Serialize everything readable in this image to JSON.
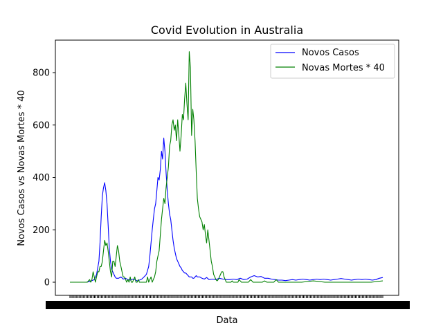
{
  "chart_data": {
    "type": "line",
    "title": "Covid Evolution in Australia",
    "xlabel": "Data",
    "ylabel": "Novos Casos vs Novas Mortes * 40",
    "ylim": [
      -52,
      920
    ],
    "yticks": [
      0,
      200,
      400,
      600,
      800
    ],
    "grid": false,
    "legend_position": "top-right",
    "x_tick_labels_note": "dense overlapping date labels (illegible)",
    "series": [
      {
        "name": "Novos Casos",
        "color": "#0000ff",
        "x": [
          0,
          15,
          28,
          34,
          38,
          42,
          46,
          50,
          52,
          54,
          56,
          58,
          60,
          62,
          64,
          66,
          68,
          70,
          72,
          74,
          76,
          78,
          80,
          84,
          88,
          92,
          96,
          100,
          104,
          108,
          112,
          116,
          120,
          124,
          128,
          132,
          136,
          138,
          140,
          142,
          144,
          146,
          148,
          150,
          152,
          154,
          156,
          158,
          160,
          162,
          164,
          166,
          168,
          170,
          172,
          174,
          176,
          178,
          180,
          182,
          184,
          186,
          188,
          190,
          192,
          194,
          196,
          198,
          200,
          202,
          204,
          206,
          208,
          210,
          212,
          214,
          216,
          218,
          220,
          224,
          228,
          232,
          236,
          240,
          246,
          252,
          258,
          264,
          270,
          276,
          282,
          288,
          294,
          300,
          306,
          312,
          318,
          324,
          330,
          336,
          342,
          348,
          354,
          360,
          366,
          372,
          378,
          384,
          390,
          396,
          402,
          408,
          414,
          420,
          426,
          432,
          438,
          444,
          450,
          456,
          462,
          468,
          474,
          480,
          486,
          492,
          498,
          504,
          510,
          516,
          522,
          528,
          534,
          540
        ],
        "values": [
          0,
          0,
          0,
          2,
          6,
          10,
          30,
          80,
          150,
          250,
          330,
          360,
          380,
          350,
          300,
          220,
          130,
          80,
          50,
          40,
          30,
          20,
          15,
          15,
          20,
          12,
          15,
          10,
          8,
          12,
          10,
          5,
          8,
          12,
          20,
          30,
          60,
          100,
          150,
          200,
          240,
          280,
          300,
          350,
          400,
          390,
          430,
          500,
          470,
          550,
          500,
          420,
          350,
          300,
          260,
          240,
          200,
          160,
          130,
          110,
          90,
          80,
          70,
          60,
          55,
          45,
          40,
          35,
          35,
          30,
          25,
          20,
          20,
          20,
          15,
          15,
          20,
          25,
          20,
          20,
          15,
          12,
          18,
          10,
          12,
          10,
          15,
          12,
          10,
          10,
          12,
          10,
          15,
          10,
          12,
          20,
          25,
          20,
          22,
          15,
          15,
          12,
          10,
          8,
          8,
          6,
          8,
          10,
          8,
          10,
          12,
          10,
          8,
          10,
          12,
          10,
          12,
          10,
          8,
          10,
          12,
          14,
          12,
          10,
          8,
          10,
          12,
          10,
          12,
          10,
          8,
          10,
          15,
          18
        ]
      },
      {
        "name": "Novas Mortes * 40",
        "color": "#008000",
        "x": [
          0,
          20,
          30,
          34,
          36,
          38,
          40,
          42,
          44,
          46,
          48,
          50,
          52,
          54,
          56,
          58,
          60,
          62,
          64,
          66,
          68,
          70,
          72,
          74,
          76,
          78,
          80,
          82,
          84,
          86,
          88,
          90,
          92,
          94,
          96,
          98,
          100,
          102,
          104,
          106,
          108,
          110,
          112,
          114,
          116,
          118,
          120,
          124,
          128,
          130,
          132,
          134,
          136,
          138,
          140,
          142,
          144,
          146,
          148,
          150,
          152,
          154,
          156,
          158,
          160,
          162,
          164,
          166,
          168,
          170,
          172,
          174,
          176,
          178,
          180,
          182,
          184,
          186,
          188,
          190,
          192,
          194,
          196,
          198,
          200,
          202,
          204,
          206,
          208,
          210,
          212,
          214,
          216,
          218,
          220,
          222,
          224,
          226,
          228,
          230,
          232,
          234,
          236,
          238,
          240,
          242,
          244,
          246,
          248,
          250,
          252,
          254,
          256,
          258,
          260,
          262,
          264,
          266,
          268,
          270,
          272,
          274,
          276,
          278,
          280,
          282,
          284,
          286,
          288,
          290,
          292,
          294,
          296,
          298,
          300,
          304,
          308,
          312,
          316,
          320,
          324,
          328,
          332,
          336,
          340,
          344,
          348,
          352,
          356,
          360,
          364,
          368,
          372,
          380,
          400,
          420,
          440,
          460,
          480,
          500,
          520,
          540
        ],
        "values": [
          0,
          0,
          0,
          10,
          0,
          10,
          40,
          20,
          0,
          20,
          40,
          40,
          60,
          60,
          80,
          120,
          160,
          140,
          150,
          120,
          80,
          40,
          20,
          80,
          80,
          60,
          100,
          140,
          120,
          80,
          60,
          40,
          20,
          20,
          10,
          0,
          10,
          0,
          20,
          0,
          0,
          10,
          20,
          0,
          0,
          10,
          0,
          0,
          0,
          0,
          0,
          20,
          0,
          10,
          20,
          0,
          10,
          20,
          40,
          80,
          100,
          120,
          180,
          240,
          280,
          320,
          300,
          360,
          400,
          440,
          520,
          540,
          600,
          620,
          580,
          600,
          540,
          620,
          560,
          500,
          560,
          640,
          620,
          700,
          760,
          680,
          620,
          880,
          820,
          560,
          660,
          620,
          540,
          420,
          320,
          280,
          250,
          240,
          230,
          200,
          220,
          180,
          150,
          200,
          160,
          120,
          80,
          60,
          30,
          20,
          10,
          5,
          10,
          20,
          30,
          40,
          40,
          20,
          10,
          0,
          0,
          0,
          0,
          0,
          5,
          0,
          0,
          0,
          0,
          0,
          10,
          5,
          0,
          0,
          0,
          0,
          0,
          10,
          0,
          0,
          0,
          0,
          0,
          5,
          0,
          0,
          0,
          0,
          10,
          0,
          0,
          0,
          0,
          0,
          0,
          5,
          0,
          0,
          0,
          0,
          0,
          5
        ]
      }
    ]
  }
}
